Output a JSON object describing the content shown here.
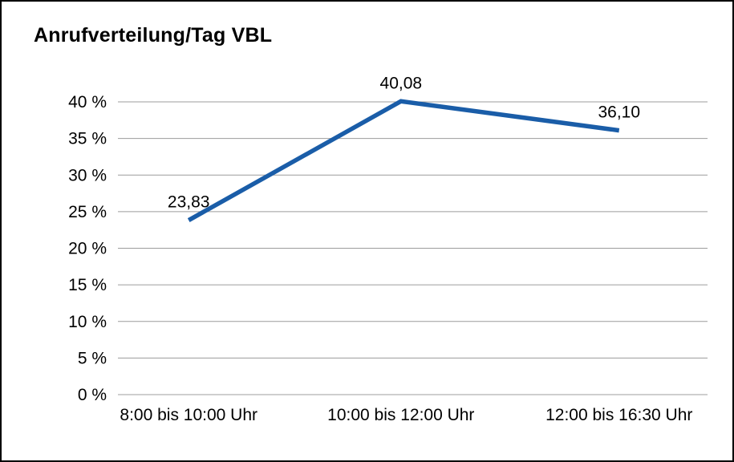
{
  "chart_data": {
    "type": "line",
    "title": "Anrufverteilung/Tag VBL",
    "categories": [
      "8:00 bis 10:00 Uhr",
      "10:00 bis 12:00 Uhr",
      "12:00 bis 16:30 Uhr"
    ],
    "values": [
      23.83,
      40.08,
      36.1
    ],
    "value_labels": [
      "23,83",
      "40,08",
      "36,10"
    ],
    "xlabel": "",
    "ylabel": "",
    "ylim": [
      0,
      40
    ],
    "ytick_step": 5,
    "ytick_labels": [
      "0 %",
      "5 %",
      "10 %",
      "15 %",
      "20 %",
      "25 %",
      "30 %",
      "35 %",
      "40 %"
    ],
    "grid": "horizontal",
    "legend": "none"
  },
  "colors": {
    "line": "#1a5da8",
    "grid": "#9c9c9c",
    "text": "#000000",
    "border": "#000000",
    "background": "#ffffff"
  }
}
